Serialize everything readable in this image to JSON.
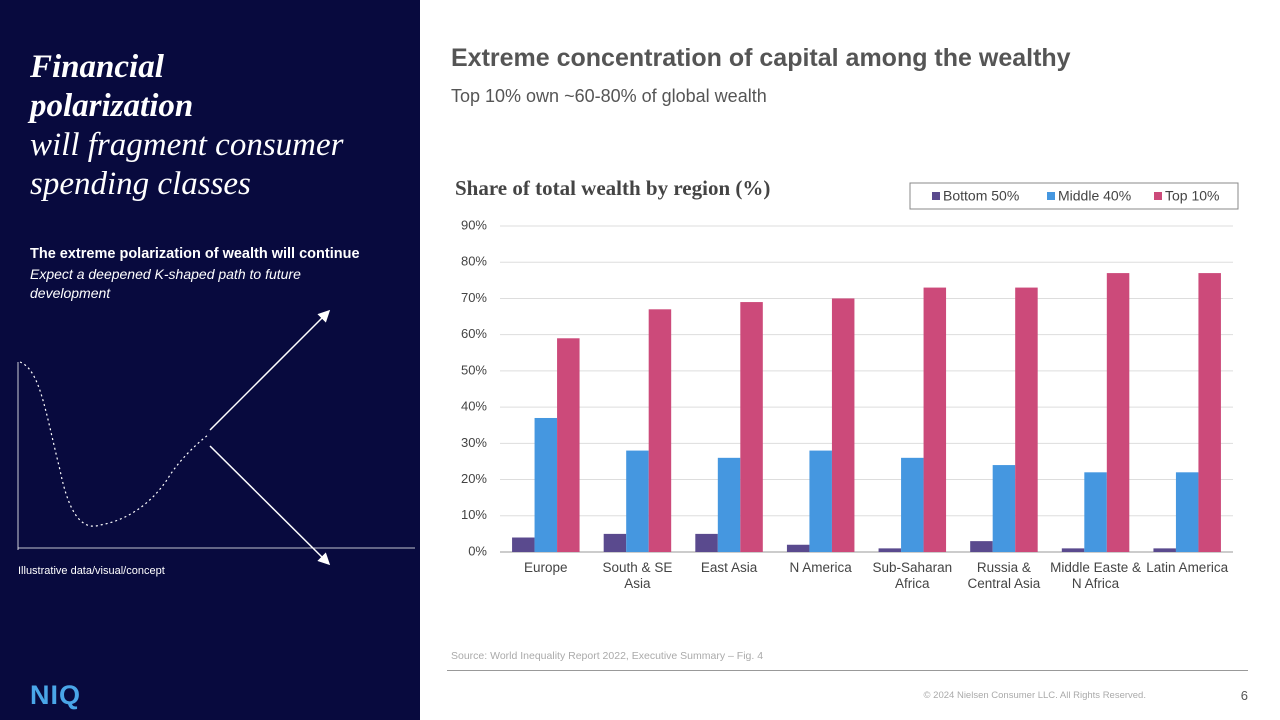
{
  "left_panel": {
    "heading_bold": "Financial polarization",
    "heading_italic": "will fragment consumer spending classes",
    "point_title": "The extreme polarization of wealth will continue",
    "point_text": "Expect a deepened K-shaped path to future development",
    "note": "Illustrative data/visual/concept",
    "logo": "NIQ"
  },
  "slide": {
    "title": "Extreme concentration of capital among the wealthy",
    "subtitle": "Top 10% own ~60-80% of global wealth",
    "source": "Source: World Inequality Report 2022, Executive Summary – Fig. 4",
    "copyright": "© 2024 Nielsen Consumer LLC. All Rights Reserved.",
    "page_number": 6
  },
  "chart_data": {
    "type": "bar",
    "title": "Share of total wealth by region (%)",
    "categories": [
      "Europe",
      "South & SE Asia",
      "East Asia",
      "N America",
      "Sub-Saharan Africa",
      "Russia & Central Asia",
      "Middle Easte & N Africa",
      "Latin America"
    ],
    "series": [
      {
        "name": "Bottom 50%",
        "color": "#5a4a8e",
        "values": [
          4,
          5,
          5,
          2,
          1,
          3,
          1,
          1
        ]
      },
      {
        "name": "Middle 40%",
        "color": "#4597e0",
        "values": [
          37,
          28,
          26,
          28,
          26,
          24,
          22,
          22
        ]
      },
      {
        "name": "Top 10%",
        "color": "#cc4a7a",
        "values": [
          59,
          67,
          69,
          70,
          73,
          73,
          77,
          77
        ]
      }
    ],
    "ylim": [
      0,
      90
    ],
    "yticks": [
      {
        "value": 0,
        "label": "0%"
      },
      {
        "value": 10,
        "label": "10%"
      },
      {
        "value": 20,
        "label": "20%"
      },
      {
        "value": 30,
        "label": "30%"
      },
      {
        "value": 40,
        "label": "40%"
      },
      {
        "value": 50,
        "label": "50%"
      },
      {
        "value": 60,
        "label": "60%"
      },
      {
        "value": 70,
        "label": "70%"
      },
      {
        "value": 80,
        "label": "80%"
      },
      {
        "value": 90,
        "label": "90%"
      }
    ],
    "grid": true,
    "legend": "top-right"
  }
}
